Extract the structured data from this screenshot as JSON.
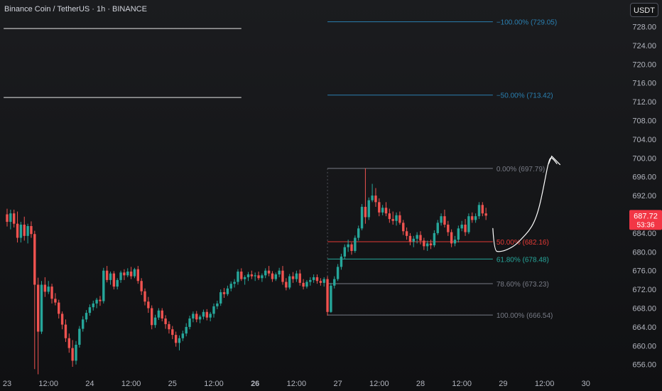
{
  "header": {
    "title": "Binance Coin / TetherUS · 1h · BINANCE",
    "currency_button": "USDT"
  },
  "colors": {
    "up": "#26a69a",
    "down": "#ef5350",
    "axis_text": "#b2b5be",
    "fib_blue": "#2a7fb0",
    "fib_gray": "#787b86",
    "fib_red": "#e53935",
    "fib_teal": "#26a69a",
    "price_tag": "#f23645",
    "drawing": "#ffffff"
  },
  "chart_data": {
    "type": "candlestick",
    "title": "Binance Coin / TetherUS · 1h · BINANCE",
    "ylim": [
      653.5,
      732
    ],
    "y_ticks": [
      656,
      660,
      664,
      668,
      672,
      676,
      680,
      684,
      688,
      692,
      696,
      700,
      704,
      708,
      712,
      716,
      720,
      724,
      728
    ],
    "y_tick_labels": [
      "656.00",
      "660.00",
      "664.00",
      "668.00",
      "672.00",
      "676.00",
      "680.00",
      "684.00",
      "688.00",
      "692.00",
      "696.00",
      "700.00",
      "704.00",
      "708.00",
      "712.00",
      "716.00",
      "720.00",
      "724.00",
      "728.00"
    ],
    "x_ticks": [
      {
        "pos": 0,
        "label": "23",
        "bold": false
      },
      {
        "pos": 12,
        "label": "12:00",
        "bold": false
      },
      {
        "pos": 24,
        "label": "24",
        "bold": false
      },
      {
        "pos": 36,
        "label": "12:00",
        "bold": false
      },
      {
        "pos": 48,
        "label": "25",
        "bold": false
      },
      {
        "pos": 60,
        "label": "12:00",
        "bold": false
      },
      {
        "pos": 72,
        "label": "26",
        "bold": true
      },
      {
        "pos": 84,
        "label": "12:00",
        "bold": false
      },
      {
        "pos": 96,
        "label": "27",
        "bold": false
      },
      {
        "pos": 108,
        "label": "12:00",
        "bold": false
      },
      {
        "pos": 120,
        "label": "28",
        "bold": false
      },
      {
        "pos": 132,
        "label": "12:00",
        "bold": false
      },
      {
        "pos": 144,
        "label": "29",
        "bold": false
      },
      {
        "pos": 156,
        "label": "12:00",
        "bold": false
      },
      {
        "pos": 168,
        "label": "30",
        "bold": false
      }
    ],
    "last_price": {
      "value": 687.72,
      "label": "687.72",
      "countdown": "53:36"
    },
    "fibonacci": {
      "start_index": 93,
      "end_index": 141,
      "levels": [
        {
          "value": 729.05,
          "label": "−100.00% (729.05)",
          "color": "blue"
        },
        {
          "value": 713.42,
          "label": "−50.00% (713.42)",
          "color": "blue"
        },
        {
          "value": 697.79,
          "label": "0.00% (697.79)",
          "color": "gray"
        },
        {
          "value": 682.16,
          "label": "50.00% (682.16)",
          "color": "red"
        },
        {
          "value": 678.48,
          "label": "61.80% (678.48)",
          "color": "teal"
        },
        {
          "value": 673.23,
          "label": "78.60% (673.23)",
          "color": "gray"
        },
        {
          "value": 666.54,
          "label": "100.00% (666.54)",
          "color": "gray"
        }
      ]
    },
    "horizontal_lines": [
      {
        "value": 727.6,
        "from_index": -1,
        "to_index": 68
      },
      {
        "value": 712.9,
        "from_index": -1,
        "to_index": 68
      }
    ],
    "projection_path": [
      [
        141,
        685.0
      ],
      [
        141.4,
        680.2
      ],
      [
        143,
        680.0
      ],
      [
        145,
        680.4
      ],
      [
        147.5,
        681.4
      ],
      [
        149.5,
        682.9
      ],
      [
        151.5,
        684.5
      ],
      [
        153,
        686.3
      ],
      [
        154.3,
        689.0
      ],
      [
        155.4,
        692.6
      ],
      [
        156.3,
        696.0
      ],
      [
        157.0,
        698.6
      ],
      [
        157.7,
        700.2
      ],
      [
        158.5,
        699.8
      ],
      [
        159.6,
        698.8
      ]
    ],
    "arrowhead": [
      [
        160.5,
        698.6
      ],
      [
        158.1,
        700.4
      ],
      [
        157.2,
        698.8
      ]
    ],
    "candles": [
      [
        688.0,
        689.2,
        685.4,
        686.4
      ],
      [
        686.4,
        689.0,
        684.8,
        688.2
      ],
      [
        688.2,
        689.0,
        685.2,
        686.0
      ],
      [
        686.0,
        688.6,
        682.0,
        683.0
      ],
      [
        683.0,
        686.4,
        682.0,
        685.8
      ],
      [
        685.8,
        687.5,
        682.4,
        683.4
      ],
      [
        683.4,
        686.0,
        681.8,
        685.5
      ],
      [
        685.5,
        686.5,
        683.0,
        683.8
      ],
      [
        683.8,
        684.5,
        655.0,
        673.0
      ],
      [
        673.0,
        674.5,
        653.9,
        663.0
      ],
      [
        663.0,
        673.8,
        662.5,
        673.0
      ],
      [
        673.0,
        674.6,
        670.4,
        671.5
      ],
      [
        671.5,
        673.8,
        671.0,
        672.6
      ],
      [
        672.6,
        673.2,
        669.0,
        670.0
      ],
      [
        670.0,
        671.2,
        668.6,
        669.2
      ],
      [
        669.2,
        669.8,
        665.8,
        666.8
      ],
      [
        666.8,
        667.3,
        663.5,
        664.5
      ],
      [
        664.5,
        665.6,
        660.8,
        661.6
      ],
      [
        661.6,
        662.6,
        658.5,
        659.5
      ],
      [
        659.5,
        661.2,
        655.5,
        656.8
      ],
      [
        656.8,
        661.0,
        656.0,
        660.2
      ],
      [
        660.2,
        664.2,
        659.6,
        663.6
      ],
      [
        663.6,
        666.3,
        663.0,
        665.6
      ],
      [
        665.6,
        667.6,
        665.0,
        667.0
      ],
      [
        667.0,
        668.8,
        666.4,
        668.2
      ],
      [
        668.2,
        669.6,
        667.5,
        669.0
      ],
      [
        669.0,
        670.2,
        668.0,
        669.8
      ],
      [
        669.8,
        670.6,
        668.5,
        669.5
      ],
      [
        669.5,
        676.6,
        669.0,
        676.0
      ],
      [
        676.0,
        677.0,
        673.5,
        674.0
      ],
      [
        674.0,
        675.8,
        673.0,
        675.4
      ],
      [
        675.4,
        675.9,
        672.0,
        672.6
      ],
      [
        672.6,
        674.4,
        672.0,
        674.0
      ],
      [
        674.0,
        676.0,
        673.4,
        675.6
      ],
      [
        675.6,
        676.3,
        674.0,
        675.0
      ],
      [
        675.0,
        676.5,
        674.6,
        675.8
      ],
      [
        675.8,
        676.8,
        674.2,
        674.8
      ],
      [
        674.8,
        676.6,
        674.4,
        676.3
      ],
      [
        676.3,
        677.0,
        673.2,
        673.8
      ],
      [
        673.8,
        674.4,
        670.8,
        671.6
      ],
      [
        671.6,
        672.2,
        668.6,
        669.4
      ],
      [
        669.4,
        670.4,
        667.0,
        668.0
      ],
      [
        668.0,
        668.6,
        663.5,
        664.4
      ],
      [
        664.4,
        666.6,
        663.8,
        666.0
      ],
      [
        666.0,
        668.0,
        665.5,
        667.5
      ],
      [
        667.5,
        668.0,
        665.2,
        665.8
      ],
      [
        665.8,
        666.5,
        663.6,
        664.6
      ],
      [
        664.6,
        665.2,
        662.6,
        663.5
      ],
      [
        663.5,
        664.2,
        661.4,
        662.3
      ],
      [
        662.3,
        663.0,
        659.8,
        660.6
      ],
      [
        660.6,
        662.2,
        659.0,
        661.6
      ],
      [
        661.6,
        663.2,
        661.0,
        662.6
      ],
      [
        662.6,
        664.8,
        662.0,
        664.0
      ],
      [
        664.0,
        666.4,
        663.5,
        665.8
      ],
      [
        665.8,
        667.3,
        665.0,
        666.8
      ],
      [
        666.8,
        667.4,
        665.0,
        665.6
      ],
      [
        665.6,
        666.6,
        664.8,
        666.2
      ],
      [
        666.2,
        667.7,
        665.6,
        667.2
      ],
      [
        667.2,
        667.8,
        665.4,
        666.0
      ],
      [
        666.0,
        667.2,
        665.2,
        666.8
      ],
      [
        666.8,
        669.0,
        666.0,
        668.4
      ],
      [
        668.4,
        669.6,
        667.8,
        669.0
      ],
      [
        669.0,
        672.0,
        668.5,
        671.4
      ],
      [
        671.4,
        672.3,
        670.2,
        671.0
      ],
      [
        671.0,
        672.8,
        670.6,
        672.2
      ],
      [
        672.2,
        673.7,
        671.6,
        673.2
      ],
      [
        673.2,
        674.2,
        672.4,
        673.6
      ],
      [
        673.6,
        676.3,
        673.0,
        675.8
      ],
      [
        675.8,
        676.5,
        673.8,
        674.2
      ],
      [
        674.2,
        675.0,
        673.0,
        674.6
      ],
      [
        674.6,
        675.7,
        673.8,
        675.2
      ],
      [
        675.2,
        676.0,
        674.2,
        674.8
      ],
      [
        674.8,
        675.6,
        673.8,
        675.0
      ],
      [
        675.0,
        675.8,
        674.0,
        674.4
      ],
      [
        674.4,
        675.4,
        673.6,
        675.0
      ],
      [
        675.0,
        676.5,
        674.4,
        676.0
      ],
      [
        676.0,
        677.0,
        674.8,
        675.4
      ],
      [
        675.4,
        675.9,
        673.6,
        674.2
      ],
      [
        674.2,
        675.6,
        673.8,
        675.2
      ],
      [
        675.2,
        676.6,
        674.6,
        676.0
      ],
      [
        676.0,
        677.0,
        673.0,
        673.6
      ],
      [
        673.6,
        674.4,
        671.8,
        672.4
      ],
      [
        672.4,
        675.3,
        672.0,
        674.8
      ],
      [
        674.8,
        675.7,
        673.4,
        674.2
      ],
      [
        674.2,
        676.0,
        673.6,
        675.4
      ],
      [
        675.4,
        676.2,
        672.8,
        673.4
      ],
      [
        673.4,
        674.2,
        672.0,
        672.6
      ],
      [
        672.6,
        674.0,
        672.2,
        673.6
      ],
      [
        673.6,
        674.6,
        672.8,
        674.0
      ],
      [
        674.0,
        675.2,
        673.4,
        674.6
      ],
      [
        674.6,
        675.2,
        673.2,
        673.8
      ],
      [
        673.8,
        674.4,
        672.8,
        673.4
      ],
      [
        673.4,
        674.6,
        672.6,
        674.2
      ],
      [
        674.2,
        674.8,
        666.4,
        667.2
      ],
      [
        667.2,
        673.4,
        667.0,
        672.8
      ],
      [
        672.8,
        674.8,
        672.2,
        674.2
      ],
      [
        674.2,
        677.4,
        673.8,
        676.8
      ],
      [
        676.8,
        679.6,
        676.2,
        679.0
      ],
      [
        679.0,
        681.6,
        678.4,
        681.0
      ],
      [
        681.0,
        682.6,
        680.0,
        681.6
      ],
      [
        681.6,
        682.0,
        679.4,
        680.2
      ],
      [
        680.2,
        683.5,
        679.8,
        683.0
      ],
      [
        683.0,
        685.6,
        682.4,
        685.0
      ],
      [
        685.0,
        690.2,
        684.6,
        689.6
      ],
      [
        689.6,
        697.8,
        686.0,
        687.4
      ],
      [
        687.4,
        691.6,
        686.8,
        691.0
      ],
      [
        691.0,
        694.5,
        690.6,
        692.0
      ],
      [
        692.0,
        693.6,
        689.6,
        690.6
      ],
      [
        690.6,
        691.4,
        687.6,
        688.4
      ],
      [
        688.4,
        690.0,
        687.8,
        689.4
      ],
      [
        689.4,
        690.6,
        687.6,
        688.2
      ],
      [
        688.2,
        689.2,
        686.2,
        687.0
      ],
      [
        687.0,
        688.6,
        685.8,
        686.6
      ],
      [
        686.6,
        688.4,
        685.6,
        687.8
      ],
      [
        687.8,
        688.6,
        685.8,
        686.2
      ],
      [
        686.2,
        686.8,
        683.6,
        684.4
      ],
      [
        684.4,
        685.2,
        682.6,
        683.4
      ],
      [
        683.4,
        684.0,
        681.4,
        682.2
      ],
      [
        682.2,
        683.4,
        681.0,
        682.8
      ],
      [
        682.8,
        684.2,
        681.8,
        683.6
      ],
      [
        683.6,
        684.4,
        681.6,
        682.4
      ],
      [
        682.4,
        683.0,
        680.4,
        681.2
      ],
      [
        681.2,
        682.4,
        680.2,
        681.8
      ],
      [
        681.8,
        682.6,
        680.6,
        681.4
      ],
      [
        681.4,
        684.6,
        681.0,
        684.0
      ],
      [
        684.0,
        686.8,
        683.6,
        686.2
      ],
      [
        686.2,
        688.2,
        685.6,
        687.6
      ],
      [
        687.6,
        689.0,
        685.2,
        685.8
      ],
      [
        685.8,
        686.6,
        683.4,
        684.2
      ],
      [
        684.2,
        684.8,
        681.0,
        681.8
      ],
      [
        681.8,
        683.4,
        681.2,
        682.6
      ],
      [
        682.6,
        685.6,
        682.0,
        685.0
      ],
      [
        685.0,
        686.6,
        684.4,
        685.8
      ],
      [
        685.8,
        687.0,
        683.4,
        684.2
      ],
      [
        684.2,
        688.2,
        683.8,
        687.6
      ],
      [
        687.6,
        688.4,
        686.2,
        686.8
      ],
      [
        686.8,
        688.2,
        686.2,
        687.6
      ],
      [
        687.6,
        690.6,
        687.0,
        690.0
      ],
      [
        690.0,
        690.6,
        687.6,
        688.2
      ],
      [
        688.2,
        689.4,
        686.8,
        687.72
      ]
    ]
  }
}
